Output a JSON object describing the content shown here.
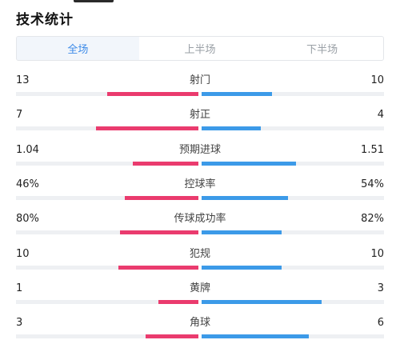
{
  "header": {
    "title": "技术统计"
  },
  "tabs": [
    {
      "label": "全场",
      "active": true
    },
    {
      "label": "上半场",
      "active": false
    },
    {
      "label": "下半场",
      "active": false
    }
  ],
  "colors": {
    "home": "#ea3b6e",
    "away": "#3c9ae8",
    "active_tab": "#3d8be8"
  },
  "stats": [
    {
      "label": "射门",
      "home": "13",
      "away": "10",
      "home_fill": 0.57,
      "away_fill": 0.44
    },
    {
      "label": "射正",
      "home": "7",
      "away": "4",
      "home_fill": 0.64,
      "away_fill": 0.37
    },
    {
      "label": "预期进球",
      "home": "1.04",
      "away": "1.51",
      "home_fill": 0.41,
      "away_fill": 0.59
    },
    {
      "label": "控球率",
      "home": "46%",
      "away": "54%",
      "home_fill": 0.46,
      "away_fill": 0.54
    },
    {
      "label": "传球成功率",
      "home": "80%",
      "away": "82%",
      "home_fill": 0.49,
      "away_fill": 0.5
    },
    {
      "label": "犯规",
      "home": "10",
      "away": "10",
      "home_fill": 0.5,
      "away_fill": 0.5
    },
    {
      "label": "黄牌",
      "home": "1",
      "away": "3",
      "home_fill": 0.25,
      "away_fill": 0.75
    },
    {
      "label": "角球",
      "home": "3",
      "away": "6",
      "home_fill": 0.33,
      "away_fill": 0.67
    }
  ]
}
